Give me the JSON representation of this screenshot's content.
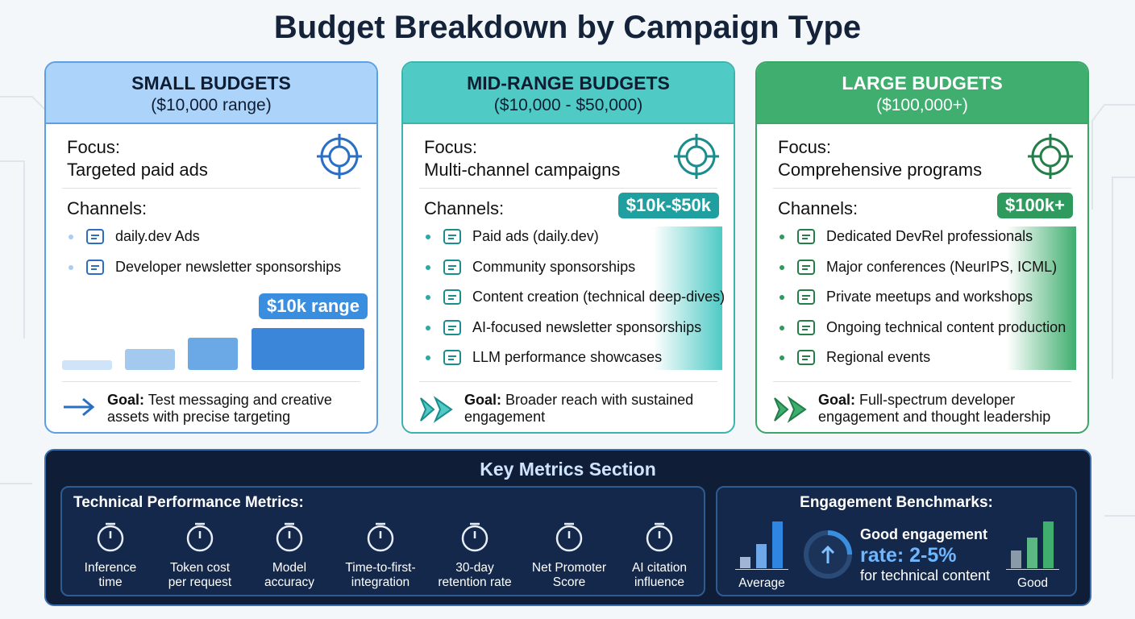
{
  "title": "Budget Breakdown by Campaign Type",
  "cards": [
    {
      "title": "SMALL BUDGETS",
      "range": "($10,000 range)",
      "focus_label": "Focus:",
      "focus": "Targeted paid ads",
      "channels_label": "Channels:",
      "badge": "$10k range",
      "channels": [
        "daily.dev Ads",
        "Developer newsletter sponsorships"
      ],
      "goal_label": "Goal:",
      "goal": "Test messaging and creative assets with precise targeting"
    },
    {
      "title": "MID-RANGE BUDGETS",
      "range": "($10,000 - $50,000)",
      "focus_label": "Focus:",
      "focus": "Multi-channel campaigns",
      "channels_label": "Channels:",
      "badge": "$10k-$50k",
      "channels": [
        "Paid ads (daily.dev)",
        "Community sponsorships",
        "Content creation (technical deep-dives)",
        "AI-focused newsletter sponsorships",
        "LLM performance showcases"
      ],
      "goal_label": "Goal:",
      "goal": "Broader reach with sustained engagement"
    },
    {
      "title": "LARGE BUDGETS",
      "range": "($100,000+)",
      "focus_label": "Focus:",
      "focus": "Comprehensive programs",
      "channels_label": "Channels:",
      "badge": "$100k+",
      "channels": [
        "Dedicated DevRel professionals",
        "Major conferences (NeurIPS, ICML)",
        "Private meetups and workshops",
        "Ongoing technical content production",
        "Regional events"
      ],
      "goal_label": "Goal:",
      "goal": "Full-spectrum developer engagement and thought leadership"
    }
  ],
  "metrics": {
    "title": "Key Metrics Section",
    "technical": {
      "title": "Technical Performance Metrics:",
      "items": [
        "Inference time",
        "Token cost per request",
        "Model accuracy",
        "Time-to-first-integration",
        "30-day retention rate",
        "Net Promoter Score",
        "AI citation influence"
      ]
    },
    "engagement": {
      "title": "Engagement Benchmarks:",
      "average": "Average",
      "headline": "Good engagement",
      "rate": "rate: 2-5%",
      "note": "for technical content",
      "good": "Good"
    }
  }
}
